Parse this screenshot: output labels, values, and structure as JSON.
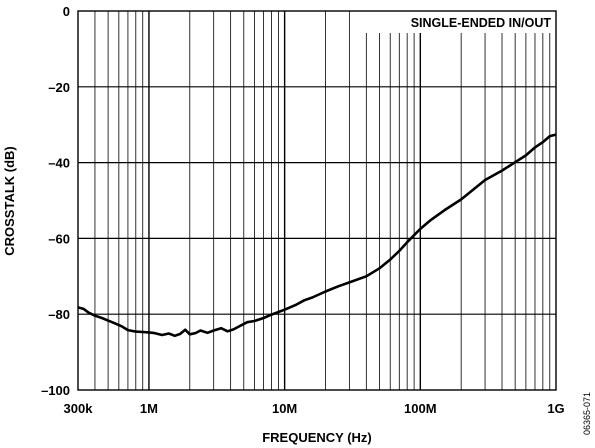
{
  "chart_data": {
    "type": "line",
    "title": "",
    "xlabel": "FREQUENCY (Hz)",
    "ylabel": "CROSSTALK (dB)",
    "x_scale": "log",
    "xlim": [
      300000,
      1000000000
    ],
    "ylim": [
      -100,
      0
    ],
    "x_ticks": [
      {
        "value": 300000,
        "label": "300k"
      },
      {
        "value": 1000000,
        "label": "1M"
      },
      {
        "value": 10000000,
        "label": "10M"
      },
      {
        "value": 100000000,
        "label": "100M"
      },
      {
        "value": 1000000000,
        "label": "1G"
      }
    ],
    "y_ticks": [
      {
        "value": 0,
        "label": "0"
      },
      {
        "value": -20,
        "label": "–20"
      },
      {
        "value": -40,
        "label": "–40"
      },
      {
        "value": -60,
        "label": "–60"
      },
      {
        "value": -80,
        "label": "–80"
      },
      {
        "value": -100,
        "label": "–100"
      }
    ],
    "grid": true,
    "legend": {
      "text": "SINGLE-ENDED IN/OUT",
      "position": "top-right"
    },
    "figure_id": "06365-071",
    "series": [
      {
        "name": "SINGLE-ENDED IN/OUT",
        "color": "#000000",
        "points": [
          [
            300000,
            -78.2
          ],
          [
            330000,
            -78.6
          ],
          [
            360000,
            -79.6
          ],
          [
            400000,
            -80.4
          ],
          [
            450000,
            -81.0
          ],
          [
            500000,
            -81.7
          ],
          [
            560000,
            -82.4
          ],
          [
            630000,
            -83.2
          ],
          [
            700000,
            -84.2
          ],
          [
            800000,
            -84.6
          ],
          [
            900000,
            -84.7
          ],
          [
            1000000,
            -84.8
          ],
          [
            1100000,
            -85.0
          ],
          [
            1250000,
            -85.5
          ],
          [
            1400000,
            -85.1
          ],
          [
            1550000,
            -85.7
          ],
          [
            1700000,
            -85.2
          ],
          [
            1850000,
            -84.1
          ],
          [
            2000000,
            -85.3
          ],
          [
            2200000,
            -85.0
          ],
          [
            2400000,
            -84.3
          ],
          [
            2700000,
            -84.9
          ],
          [
            3000000,
            -84.3
          ],
          [
            3400000,
            -83.7
          ],
          [
            3800000,
            -84.5
          ],
          [
            4200000,
            -84.0
          ],
          [
            4700000,
            -83.1
          ],
          [
            5300000,
            -82.1
          ],
          [
            6000000,
            -81.8
          ],
          [
            7000000,
            -81.0
          ],
          [
            8000000,
            -80.1
          ],
          [
            10000000,
            -78.8
          ],
          [
            12000000,
            -77.6
          ],
          [
            14000000,
            -76.3
          ],
          [
            16000000,
            -75.6
          ],
          [
            20000000,
            -74.0
          ],
          [
            25000000,
            -72.6
          ],
          [
            30000000,
            -71.6
          ],
          [
            40000000,
            -70.0
          ],
          [
            50000000,
            -67.9
          ],
          [
            60000000,
            -65.6
          ],
          [
            70000000,
            -63.3
          ],
          [
            80000000,
            -61.0
          ],
          [
            100000000,
            -57.5
          ],
          [
            120000000,
            -55.1
          ],
          [
            150000000,
            -52.6
          ],
          [
            200000000,
            -49.7
          ],
          [
            250000000,
            -46.9
          ],
          [
            300000000,
            -44.6
          ],
          [
            400000000,
            -42.1
          ],
          [
            500000000,
            -39.9
          ],
          [
            600000000,
            -38.1
          ],
          [
            700000000,
            -36.0
          ],
          [
            800000000,
            -34.6
          ],
          [
            900000000,
            -33.0
          ],
          [
            1000000000,
            -32.6
          ]
        ]
      }
    ]
  }
}
